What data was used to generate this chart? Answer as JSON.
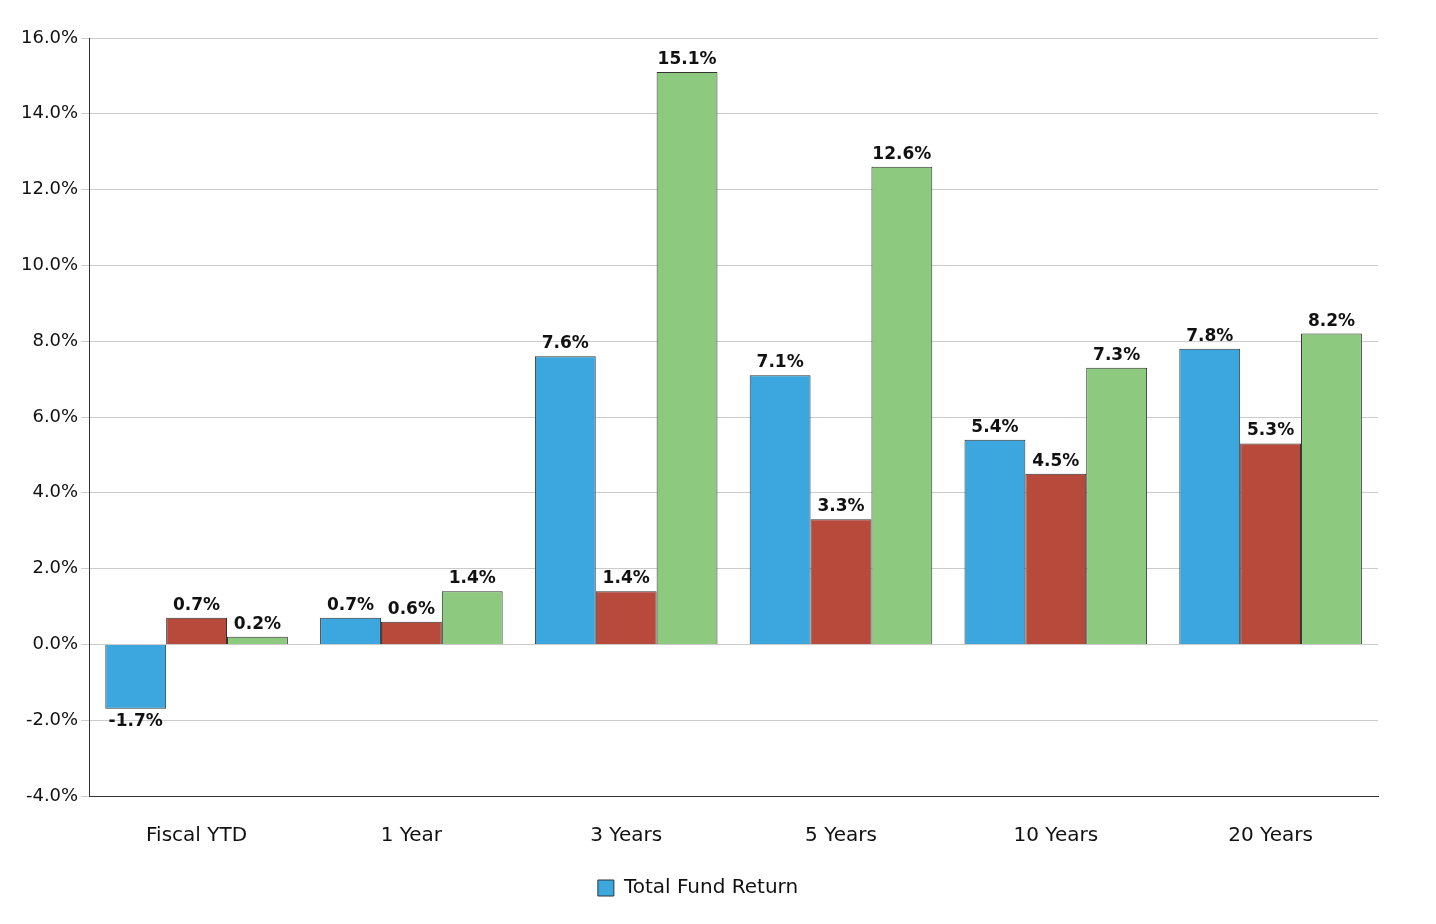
{
  "chart_data": {
    "type": "bar",
    "categories": [
      "Fiscal YTD",
      "1 Year",
      "3 Years",
      "5 Years",
      "10 Years",
      "20 Years"
    ],
    "series": [
      {
        "name": "Total Fund Return",
        "color": "#3ba7de",
        "values": [
          -1.7,
          0.7,
          7.6,
          7.1,
          5.4,
          7.8
        ],
        "value_labels": [
          "-1.7%",
          "0.7%",
          "7.6%",
          "7.1%",
          "5.4%",
          "7.8%"
        ]
      },
      {
        "color": "#b84a3c",
        "values": [
          0.7,
          0.6,
          1.4,
          3.3,
          4.5,
          5.3
        ],
        "value_labels": [
          "0.7%",
          "0.6%",
          "1.4%",
          "3.3%",
          "4.5%",
          "5.3%"
        ]
      },
      {
        "color": "#8dca7f",
        "values": [
          0.2,
          1.4,
          15.1,
          12.6,
          7.3,
          8.2
        ],
        "value_labels": [
          "0.2%",
          "1.4%",
          "15.1%",
          "12.6%",
          "7.3%",
          "8.2%"
        ]
      }
    ],
    "ylim": [
      -4,
      16
    ],
    "yticks": [
      {
        "value": -4,
        "label": "-4.0%"
      },
      {
        "value": -2,
        "label": "-2.0%"
      },
      {
        "value": 0,
        "label": "0.0%"
      },
      {
        "value": 2,
        "label": "2.0%"
      },
      {
        "value": 4,
        "label": "4.0%"
      },
      {
        "value": 6,
        "label": "6.0%"
      },
      {
        "value": 8,
        "label": "8.0%"
      },
      {
        "value": 10,
        "label": "10.0%"
      },
      {
        "value": 12,
        "label": "12.0%"
      },
      {
        "value": 14,
        "label": "14.0%"
      },
      {
        "value": 16,
        "label": "16.0%"
      }
    ],
    "grid": "y",
    "legend": "bottom"
  }
}
